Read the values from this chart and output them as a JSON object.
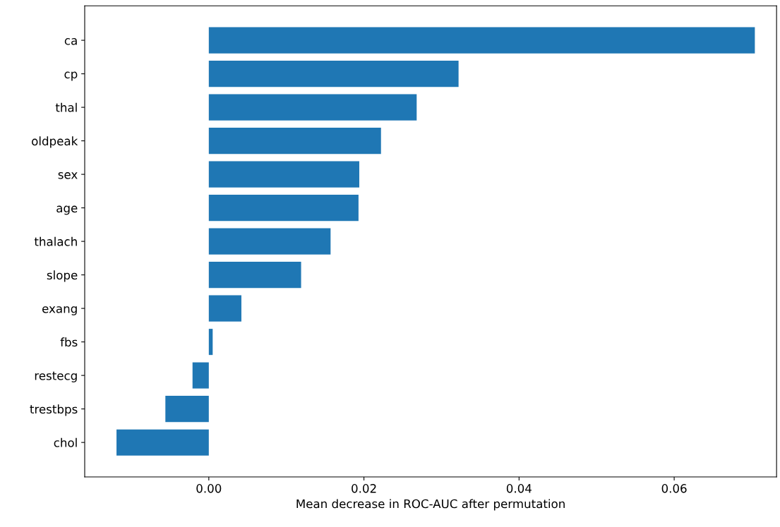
{
  "chart_data": {
    "type": "bar",
    "orientation": "horizontal",
    "xlabel": "Mean decrease in ROC-AUC after permutation",
    "categories": [
      "ca",
      "cp",
      "thal",
      "oldpeak",
      "sex",
      "age",
      "thalach",
      "slope",
      "exang",
      "fbs",
      "restecg",
      "trestbps",
      "chol"
    ],
    "values": [
      0.0704,
      0.0322,
      0.0268,
      0.0222,
      0.0194,
      0.0193,
      0.0157,
      0.0119,
      0.0042,
      0.0005,
      -0.0021,
      -0.0056,
      -0.0119
    ],
    "color": "#1f77b4",
    "xlim": [
      -0.016,
      0.0732
    ],
    "xticks": [
      {
        "value": 0,
        "label": "0.00"
      },
      {
        "value": 0.02,
        "label": "0.02"
      },
      {
        "value": 0.04,
        "label": "0.04"
      },
      {
        "value": 0.06,
        "label": "0.06"
      }
    ],
    "grid": false
  }
}
